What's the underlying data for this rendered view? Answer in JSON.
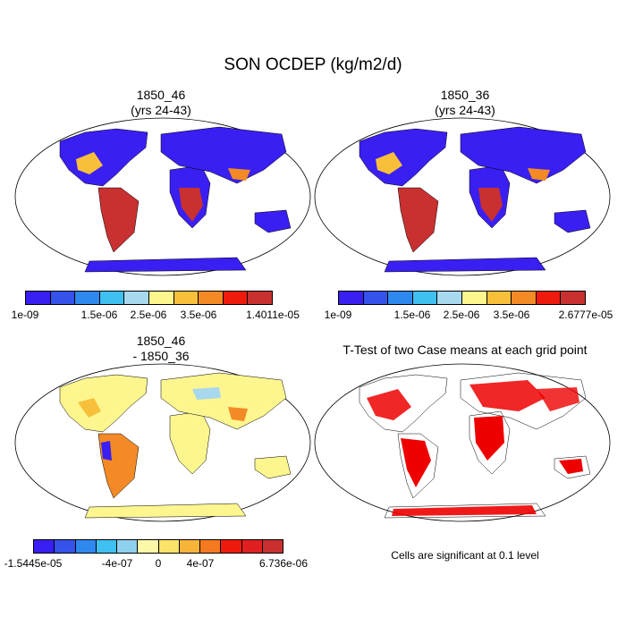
{
  "title": "SON OCDEP (kg/m2/d)",
  "panels": {
    "p1": {
      "line1": "1850_46",
      "line2": "(yrs 24-43)"
    },
    "p2": {
      "line1": "1850_36",
      "line2": "(yrs 24-43)"
    },
    "p3": {
      "line1": "1850_46",
      "line2": "- 1850_36"
    },
    "p4": {
      "line1": "T-Test of two Case means at each grid point"
    }
  },
  "colorbars": {
    "cb1": {
      "colors": [
        "#3a1ff2",
        "#3552ea",
        "#2f88ee",
        "#3fc0f0",
        "#a7d8ee",
        "#fdf58e",
        "#f8c03a",
        "#f48a25",
        "#ef1a0e",
        "#c93030"
      ],
      "labels": [
        "1e-09",
        "1.5e-06",
        "2.5e-06",
        "3.5e-06",
        "1.4011e-05"
      ]
    },
    "cb2": {
      "colors": [
        "#3a1ff2",
        "#3552ea",
        "#2f88ee",
        "#3fc0f0",
        "#a7d8ee",
        "#fdf58e",
        "#f8c03a",
        "#f48a25",
        "#ef1a0e",
        "#c93030"
      ],
      "labels": [
        "1e-09",
        "1.5e-06",
        "2.5e-06",
        "3.5e-06",
        "2.6777e-05"
      ]
    },
    "cb3": {
      "colors": [
        "#3a1ff2",
        "#3552ea",
        "#2f88ee",
        "#3fc0f0",
        "#8fd0ee",
        "#fdf7a8",
        "#fbe36a",
        "#f8b43a",
        "#f47a22",
        "#ef1a0e",
        "#e02020",
        "#c93030"
      ],
      "labels": [
        "-1.5445e-05",
        "-4e-07",
        "0",
        "4e-07",
        "6.736e-06"
      ]
    }
  },
  "note": "Cells are significant at 0.1 level",
  "colors": {
    "ocean": "#ffffff",
    "land_low": "#3a1ff2",
    "high": "#ca3230",
    "sig": "#ee0000",
    "diff_land": "#fdf58e"
  }
}
